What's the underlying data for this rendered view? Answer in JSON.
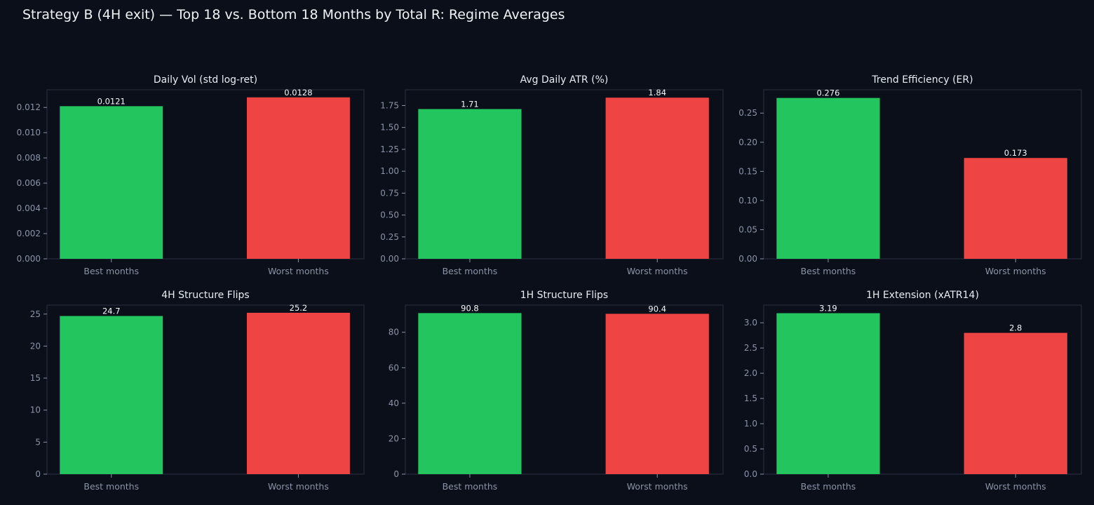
{
  "suptitle": "Strategy B (4H exit) — Top 18 vs. Bottom 18 Months by Total R: Regime Averages",
  "colors": {
    "background": "#0b0f19",
    "best": "#22c55e",
    "worst": "#ef4444",
    "axes_border": "#2a3142",
    "tick_text": "#8b93a7",
    "title_text": "#e6edf3"
  },
  "chart_data": [
    {
      "type": "bar",
      "title": "Daily Vol (std log-ret)",
      "categories": [
        "Best months",
        "Worst months"
      ],
      "values": [
        0.0121,
        0.0128
      ],
      "value_labels": [
        "0.0121",
        "0.0128"
      ],
      "ylim": [
        0,
        0.0134
      ],
      "yticks": [
        0,
        0.002,
        0.004,
        0.006,
        0.008,
        0.01,
        0.012
      ],
      "ytick_labels": [
        "0.000",
        "0.002",
        "0.004",
        "0.006",
        "0.008",
        "0.010",
        "0.012"
      ]
    },
    {
      "type": "bar",
      "title": "Avg Daily ATR (%)",
      "categories": [
        "Best months",
        "Worst months"
      ],
      "values": [
        1.71,
        1.84
      ],
      "value_labels": [
        "1.71",
        "1.84"
      ],
      "ylim": [
        0,
        1.93
      ],
      "yticks": [
        0,
        0.25,
        0.5,
        0.75,
        1.0,
        1.25,
        1.5,
        1.75
      ],
      "ytick_labels": [
        "0.00",
        "0.25",
        "0.50",
        "0.75",
        "1.00",
        "1.25",
        "1.50",
        "1.75"
      ]
    },
    {
      "type": "bar",
      "title": "Trend Efficiency (ER)",
      "categories": [
        "Best months",
        "Worst months"
      ],
      "values": [
        0.276,
        0.173
      ],
      "value_labels": [
        "0.276",
        "0.173"
      ],
      "ylim": [
        0,
        0.29
      ],
      "yticks": [
        0,
        0.05,
        0.1,
        0.15,
        0.2,
        0.25
      ],
      "ytick_labels": [
        "0.00",
        "0.05",
        "0.10",
        "0.15",
        "0.20",
        "0.25"
      ]
    },
    {
      "type": "bar",
      "title": "4H Structure Flips",
      "categories": [
        "Best months",
        "Worst months"
      ],
      "values": [
        24.7,
        25.2
      ],
      "value_labels": [
        "24.7",
        "25.2"
      ],
      "ylim": [
        0,
        26.4
      ],
      "yticks": [
        0,
        5,
        10,
        15,
        20,
        25
      ],
      "ytick_labels": [
        "0",
        "5",
        "10",
        "15",
        "20",
        "25"
      ]
    },
    {
      "type": "bar",
      "title": "1H Structure Flips",
      "categories": [
        "Best months",
        "Worst months"
      ],
      "values": [
        90.8,
        90.4
      ],
      "value_labels": [
        "90.8",
        "90.4"
      ],
      "ylim": [
        0,
        95.3
      ],
      "yticks": [
        0,
        20,
        40,
        60,
        80
      ],
      "ytick_labels": [
        "0",
        "20",
        "40",
        "60",
        "80"
      ]
    },
    {
      "type": "bar",
      "title": "1H Extension (xATR14)",
      "categories": [
        "Best months",
        "Worst months"
      ],
      "values": [
        3.19,
        2.8
      ],
      "value_labels": [
        "3.19",
        "2.8"
      ],
      "ylim": [
        0,
        3.35
      ],
      "yticks": [
        0,
        0.5,
        1.0,
        1.5,
        2.0,
        2.5,
        3.0
      ],
      "ytick_labels": [
        "0.0",
        "0.5",
        "1.0",
        "1.5",
        "2.0",
        "2.5",
        "3.0"
      ]
    }
  ]
}
